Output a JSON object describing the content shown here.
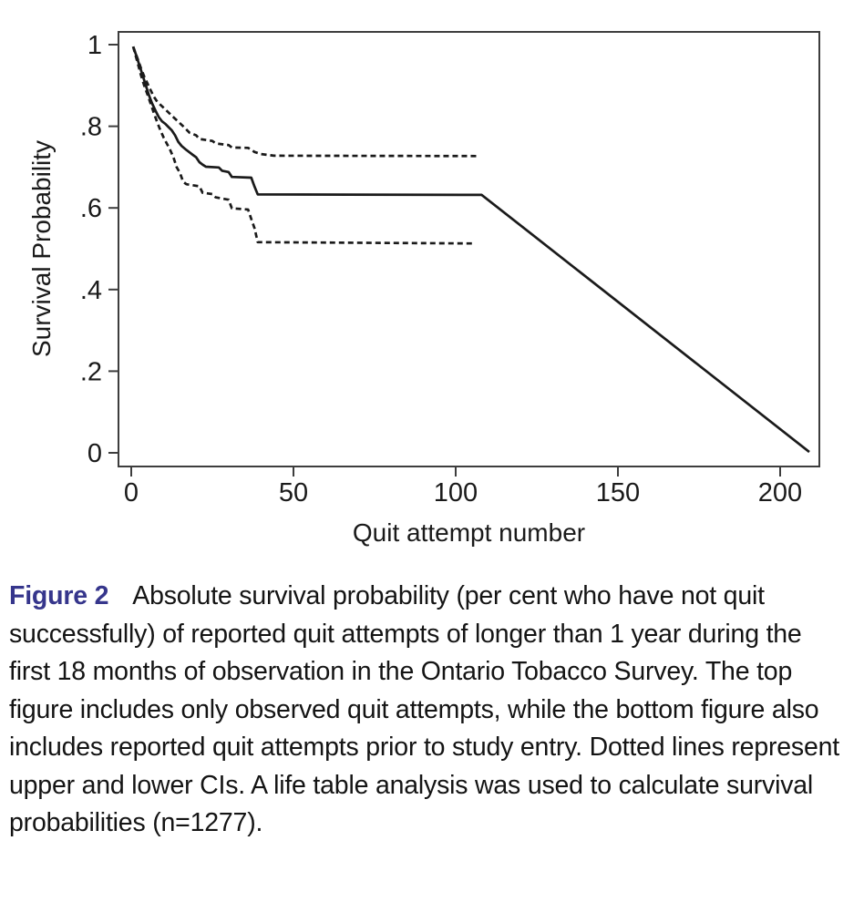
{
  "chart_data": {
    "type": "line",
    "title": "",
    "xlabel": "Quit attempt number",
    "ylabel": "Survival Probability",
    "xlim": [
      0,
      212
    ],
    "ylim": [
      0,
      1.03
    ],
    "grid": false,
    "legend": "none",
    "x_ticks": [
      0,
      50,
      100,
      150,
      200
    ],
    "x_tick_labels": [
      "0",
      "50",
      "100",
      "150",
      "200"
    ],
    "y_ticks": [
      1,
      0.8,
      0.6,
      0.4,
      0.2,
      0
    ],
    "y_tick_labels": [
      "1",
      ".8",
      ".6",
      ".4",
      ".2",
      "0"
    ],
    "series": [
      {
        "name": "survival-estimate",
        "style": "solid",
        "points": [
          [
            0.6,
            0.995
          ],
          [
            1.5,
            0.975
          ],
          [
            2.5,
            0.95
          ],
          [
            3.5,
            0.925
          ],
          [
            4.5,
            0.9
          ],
          [
            5.5,
            0.875
          ],
          [
            6.5,
            0.855
          ],
          [
            7.5,
            0.838
          ],
          [
            8.5,
            0.822
          ],
          [
            9.5,
            0.812
          ],
          [
            10.5,
            0.806
          ],
          [
            11.5,
            0.798
          ],
          [
            12.5,
            0.79
          ],
          [
            13.5,
            0.778
          ],
          [
            14.5,
            0.762
          ],
          [
            15.5,
            0.752
          ],
          [
            17,
            0.742
          ],
          [
            18,
            0.736
          ],
          [
            19,
            0.73
          ],
          [
            20,
            0.724
          ],
          [
            21,
            0.712
          ],
          [
            22,
            0.706
          ],
          [
            23,
            0.701
          ],
          [
            27,
            0.699
          ],
          [
            28,
            0.691
          ],
          [
            30,
            0.688
          ],
          [
            31,
            0.676
          ],
          [
            37,
            0.674
          ],
          [
            38,
            0.652
          ],
          [
            39,
            0.633
          ],
          [
            108,
            0.632
          ],
          [
            209,
            0.002
          ]
        ]
      },
      {
        "name": "upper-ci",
        "style": "dashed",
        "points": [
          [
            0.6,
            0.995
          ],
          [
            2,
            0.965
          ],
          [
            3,
            0.942
          ],
          [
            4,
            0.922
          ],
          [
            5,
            0.905
          ],
          [
            6,
            0.888
          ],
          [
            7,
            0.872
          ],
          [
            8,
            0.86
          ],
          [
            10,
            0.845
          ],
          [
            12,
            0.83
          ],
          [
            14,
            0.815
          ],
          [
            16,
            0.8
          ],
          [
            17,
            0.792
          ],
          [
            18,
            0.784
          ],
          [
            20,
            0.778
          ],
          [
            21,
            0.769
          ],
          [
            25,
            0.764
          ],
          [
            26,
            0.758
          ],
          [
            30,
            0.754
          ],
          [
            31,
            0.748
          ],
          [
            36,
            0.747
          ],
          [
            38,
            0.737
          ],
          [
            40,
            0.732
          ],
          [
            44,
            0.728
          ],
          [
            107,
            0.727
          ]
        ]
      },
      {
        "name": "lower-ci",
        "style": "dashed",
        "points": [
          [
            0.6,
            0.995
          ],
          [
            2,
            0.955
          ],
          [
            3,
            0.925
          ],
          [
            4,
            0.9
          ],
          [
            5,
            0.878
          ],
          [
            6,
            0.855
          ],
          [
            7,
            0.832
          ],
          [
            8,
            0.81
          ],
          [
            9,
            0.79
          ],
          [
            10,
            0.772
          ],
          [
            11,
            0.757
          ],
          [
            12,
            0.742
          ],
          [
            13,
            0.724
          ],
          [
            14,
            0.7
          ],
          [
            15,
            0.686
          ],
          [
            16,
            0.664
          ],
          [
            17,
            0.658
          ],
          [
            21,
            0.653
          ],
          [
            22,
            0.637
          ],
          [
            25,
            0.634
          ],
          [
            26,
            0.626
          ],
          [
            30,
            0.62
          ],
          [
            31,
            0.599
          ],
          [
            36,
            0.596
          ],
          [
            37,
            0.573
          ],
          [
            38,
            0.55
          ],
          [
            39,
            0.516
          ],
          [
            105,
            0.513
          ]
        ]
      }
    ]
  },
  "caption": {
    "label": "Figure 2",
    "text": "Absolute survival probability (per cent who have not quit successfully) of reported quit attempts of longer than 1 year during the first 18 months of observation in the Ontario Tobacco Survey. The top figure includes only observed quit attempts, while the bottom figure also includes reported quit attempts prior to study entry. Dotted lines represent upper and lower CIs. A life table analysis was used to calculate survival probabilities (n=1277)."
  },
  "colors": {
    "line": "#1a1a1a",
    "axis": "#3d3d3d",
    "figure_label": "#36368c",
    "text": "#141414"
  }
}
